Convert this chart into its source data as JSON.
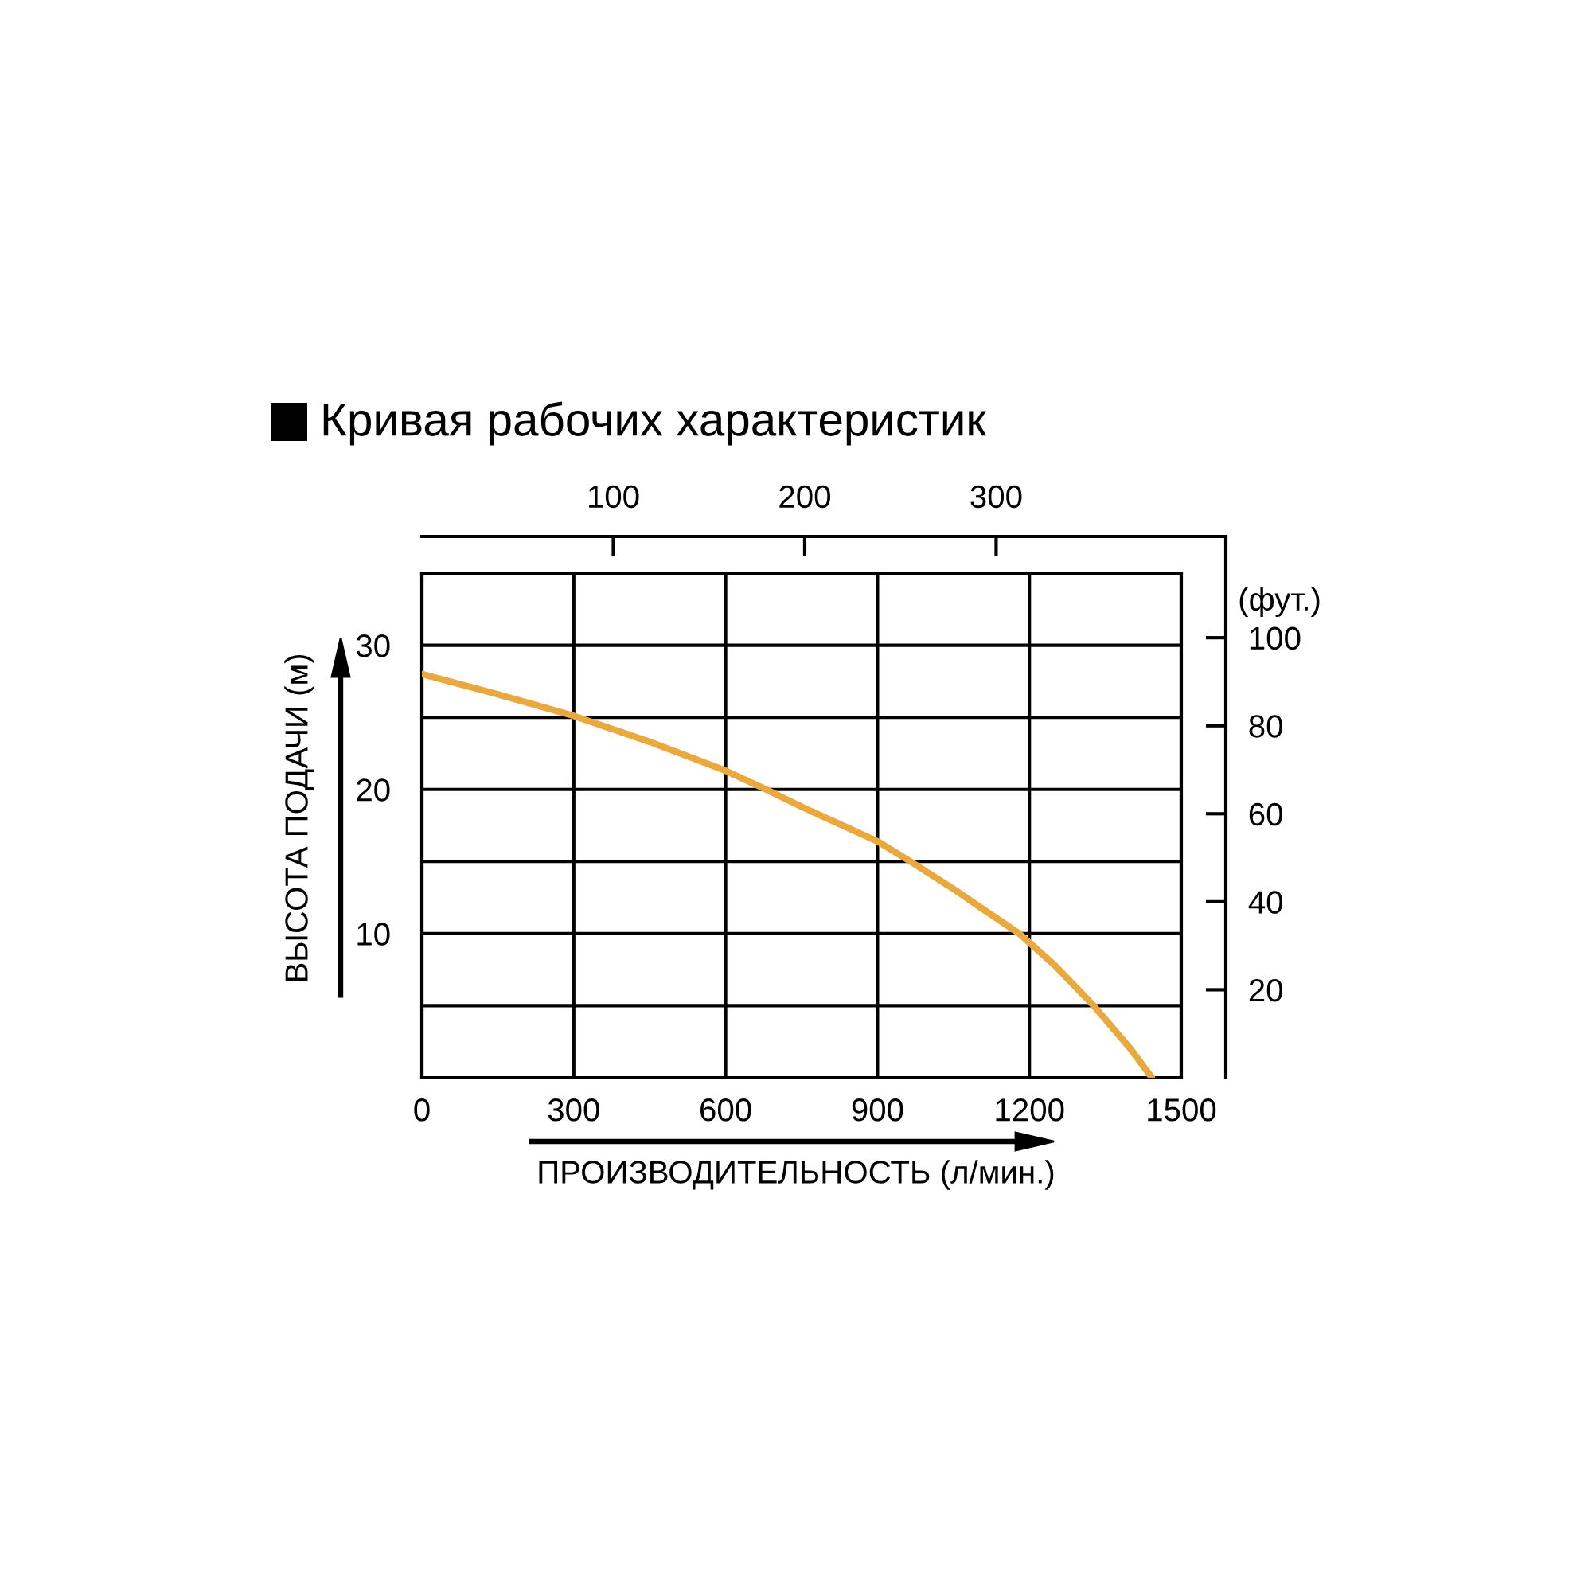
{
  "chart_data": {
    "type": "line",
    "title": "Кривая рабочих характеристик",
    "xlabel": "ПРОИЗВОДИТЕЛЬНОСТЬ (л/мин.)",
    "ylabel": "ВЫСОТА ПОДАЧИ (м)",
    "y2label": "(фут.)",
    "x": [
      0,
      150,
      300,
      450,
      600,
      680,
      750,
      900,
      965,
      1050,
      1100,
      1180,
      1250,
      1327,
      1400,
      1442
    ],
    "series": [
      {
        "color": "#e9a93e",
        "values": [
          28,
          26.6,
          25.1,
          23.3,
          21.3,
          20,
          18.8,
          16.4,
          15,
          13.1,
          11.9,
          10,
          7.8,
          5,
          2,
          0
        ]
      }
    ],
    "xlim": [
      0,
      1500
    ],
    "xticks": [
      0,
      300,
      600,
      900,
      1200,
      1500
    ],
    "ylim": [
      0,
      35
    ],
    "yticks": [
      {
        "value": 5,
        "label": null
      },
      10,
      {
        "value": 15,
        "label": null
      },
      20,
      {
        "value": 25,
        "label": null
      },
      30
    ],
    "x2lim": [
      0,
      420
    ],
    "x2ticks": [
      100,
      200,
      300
    ],
    "y2lim": [
      0,
      123
    ],
    "y2ticks": [
      20,
      40,
      60,
      80,
      100
    ],
    "grid": true,
    "marker": "none",
    "line_style": "solid"
  }
}
